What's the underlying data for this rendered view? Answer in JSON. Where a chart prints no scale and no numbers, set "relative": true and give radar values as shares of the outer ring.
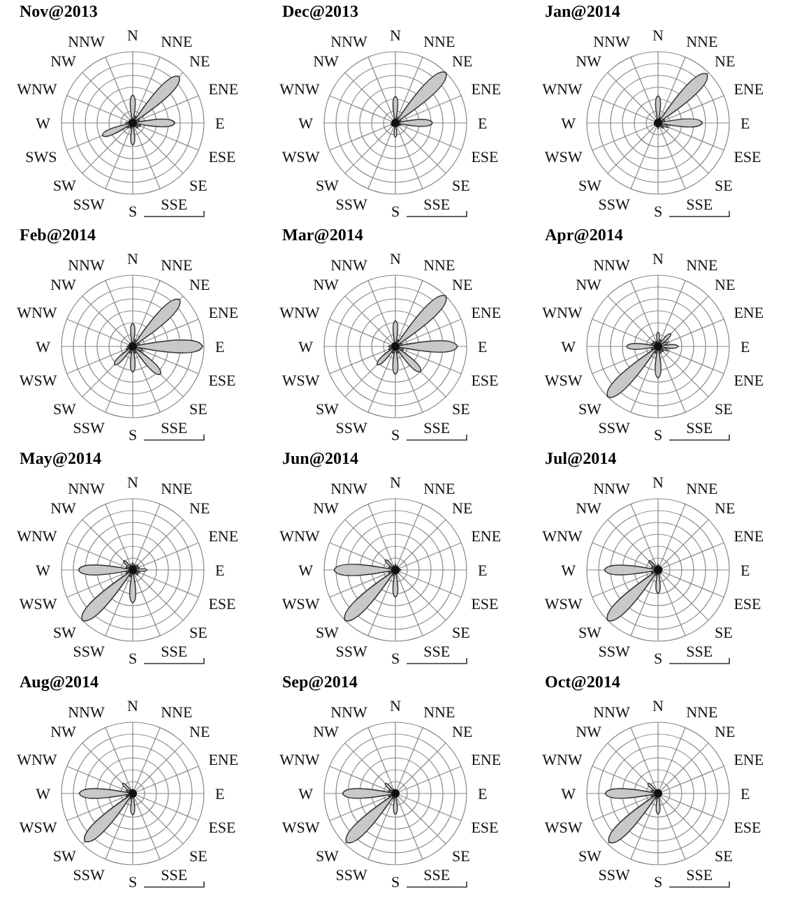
{
  "chart_data": [
    {
      "type": "radar",
      "title": "Nov@2013",
      "relative": true,
      "categories": [
        "N",
        "NNE",
        "NE",
        "ENE",
        "E",
        "ESE",
        "SE",
        "SSE",
        "S",
        "SSW",
        "SW",
        "SWS",
        "W",
        "WNW",
        "NW",
        "NNW"
      ],
      "series": [
        {
          "color": "#c8c8c8",
          "values": [
            0.39,
            0.1,
            0.92,
            0.1,
            0.59,
            0.12,
            0.1,
            0.05,
            0.31,
            0.08,
            0.1,
            0.46,
            0.1,
            0.06,
            0.06,
            0.05
          ]
        }
      ]
    },
    {
      "type": "radar",
      "title": "Dec@2013",
      "relative": true,
      "categories": [
        "N",
        "NNE",
        "NE",
        "ENE",
        "E",
        "ESE",
        "SE",
        "SSE",
        "S",
        "SSW",
        "SW",
        "WSW",
        "W",
        "WNW",
        "NW",
        "NNW"
      ],
      "series": [
        {
          "color": "#c8c8c8",
          "values": [
            0.37,
            0.08,
            1.0,
            0.08,
            0.52,
            0.08,
            0.06,
            0.05,
            0.2,
            0.05,
            0.06,
            0.07,
            0.06,
            0.05,
            0.05,
            0.05
          ]
        }
      ]
    },
    {
      "type": "radar",
      "title": "Jan@2014",
      "relative": true,
      "categories": [
        "N",
        "NNE",
        "NE",
        "ENE",
        "E",
        "ESE",
        "SE",
        "SSE",
        "S",
        "SSW",
        "SW",
        "WSW",
        "W",
        "WNW",
        "NW",
        "NNW"
      ],
      "series": [
        {
          "color": "#c8c8c8",
          "values": [
            0.38,
            0.08,
            0.97,
            0.1,
            0.62,
            0.15,
            0.1,
            0.05,
            0.08,
            0.05,
            0.05,
            0.06,
            0.05,
            0.05,
            0.05,
            0.05
          ]
        }
      ]
    },
    {
      "type": "radar",
      "title": "Feb@2014",
      "relative": true,
      "categories": [
        "N",
        "NNE",
        "NE",
        "ENE",
        "E",
        "ESE",
        "SE",
        "SSE",
        "S",
        "SSW",
        "SW",
        "WSW",
        "W",
        "WNW",
        "NW",
        "NNW"
      ],
      "series": [
        {
          "color": "#c8c8c8",
          "values": [
            0.32,
            0.1,
            0.93,
            0.1,
            0.98,
            0.15,
            0.55,
            0.1,
            0.36,
            0.1,
            0.36,
            0.1,
            0.08,
            0.06,
            0.06,
            0.06
          ]
        }
      ]
    },
    {
      "type": "radar",
      "title": "Mar@2014",
      "relative": true,
      "categories": [
        "N",
        "NNE",
        "NE",
        "ENE",
        "E",
        "ESE",
        "SE",
        "SSE",
        "S",
        "SSW",
        "SW",
        "WSW",
        "W",
        "WNW",
        "NW",
        "NNW"
      ],
      "series": [
        {
          "color": "#c8c8c8",
          "values": [
            0.36,
            0.1,
            1.0,
            0.1,
            0.87,
            0.12,
            0.5,
            0.1,
            0.39,
            0.1,
            0.36,
            0.1,
            0.1,
            0.06,
            0.06,
            0.06
          ]
        }
      ]
    },
    {
      "type": "radar",
      "title": "Apr@2014",
      "relative": true,
      "categories": [
        "N",
        "NNE",
        "NE",
        "ENE",
        "E",
        "ENE",
        "SE",
        "SSE",
        "S",
        "SSW",
        "SW",
        "WSW",
        "W",
        "WNW",
        "NW",
        "NNW"
      ],
      "series": [
        {
          "color": "#c8c8c8",
          "values": [
            0.2,
            0.1,
            0.25,
            0.15,
            0.28,
            0.15,
            0.1,
            0.1,
            0.44,
            0.1,
            1.0,
            0.1,
            0.44,
            0.1,
            0.1,
            0.08
          ]
        }
      ]
    },
    {
      "type": "radar",
      "title": "May@2014",
      "relative": true,
      "categories": [
        "N",
        "NNE",
        "NE",
        "ENE",
        "E",
        "ESE",
        "SE",
        "SSE",
        "S",
        "SSW",
        "SW",
        "WSW",
        "W",
        "WNW",
        "NW",
        "NNW"
      ],
      "series": [
        {
          "color": "#c8c8c8",
          "values": [
            0.1,
            0.08,
            0.1,
            0.1,
            0.2,
            0.1,
            0.1,
            0.06,
            0.46,
            0.1,
            1.0,
            0.1,
            0.76,
            0.1,
            0.18,
            0.08
          ]
        }
      ]
    },
    {
      "type": "radar",
      "title": "Jun@2014",
      "relative": true,
      "categories": [
        "N",
        "NNE",
        "NE",
        "ENE",
        "E",
        "ESE",
        "SE",
        "SSE",
        "S",
        "SSW",
        "SW",
        "WSW",
        "W",
        "WNW",
        "NW",
        "NNW"
      ],
      "series": [
        {
          "color": "#c8c8c8",
          "values": [
            0.08,
            0.06,
            0.06,
            0.06,
            0.08,
            0.06,
            0.06,
            0.06,
            0.38,
            0.08,
            1.0,
            0.1,
            0.86,
            0.1,
            0.2,
            0.06
          ]
        }
      ]
    },
    {
      "type": "radar",
      "title": "Jul@2014",
      "relative": true,
      "categories": [
        "N",
        "NNE",
        "NE",
        "ENE",
        "E",
        "ESE",
        "SE",
        "SSE",
        "S",
        "SSW",
        "SW",
        "WSW",
        "W",
        "WNW",
        "NW",
        "NNW"
      ],
      "series": [
        {
          "color": "#c8c8c8",
          "values": [
            0.08,
            0.06,
            0.06,
            0.06,
            0.06,
            0.06,
            0.06,
            0.06,
            0.33,
            0.08,
            1.0,
            0.1,
            0.75,
            0.1,
            0.18,
            0.06
          ]
        }
      ]
    },
    {
      "type": "radar",
      "title": "Aug@2014",
      "relative": true,
      "categories": [
        "N",
        "NNE",
        "NE",
        "ENE",
        "E",
        "ESE",
        "SE",
        "SSE",
        "S",
        "SSW",
        "SW",
        "WSW",
        "W",
        "WNW",
        "NW",
        "NNW"
      ],
      "series": [
        {
          "color": "#c8c8c8",
          "values": [
            0.06,
            0.05,
            0.05,
            0.05,
            0.05,
            0.05,
            0.05,
            0.05,
            0.3,
            0.08,
            0.95,
            0.1,
            0.75,
            0.1,
            0.2,
            0.06
          ]
        }
      ]
    },
    {
      "type": "radar",
      "title": "Sep@2014",
      "relative": true,
      "categories": [
        "N",
        "NNE",
        "NE",
        "ENE",
        "E",
        "ESE",
        "SE",
        "SSE",
        "S",
        "SSW",
        "SW",
        "WSW",
        "W",
        "WNW",
        "NW",
        "NNW"
      ],
      "series": [
        {
          "color": "#c8c8c8",
          "values": [
            0.06,
            0.05,
            0.05,
            0.05,
            0.05,
            0.05,
            0.05,
            0.05,
            0.29,
            0.08,
            0.97,
            0.1,
            0.74,
            0.1,
            0.2,
            0.06
          ]
        }
      ]
    },
    {
      "type": "radar",
      "title": "Oct@2014",
      "relative": true,
      "categories": [
        "N",
        "NNE",
        "NE",
        "ENE",
        "E",
        "ESE",
        "SE",
        "SSE",
        "S",
        "SSW",
        "SW",
        "WSW",
        "W",
        "WNW",
        "NW",
        "NNW"
      ],
      "series": [
        {
          "color": "#c8c8c8",
          "values": [
            0.06,
            0.05,
            0.05,
            0.05,
            0.05,
            0.05,
            0.05,
            0.05,
            0.29,
            0.08,
            0.97,
            0.1,
            0.74,
            0.1,
            0.2,
            0.06
          ]
        }
      ]
    }
  ]
}
